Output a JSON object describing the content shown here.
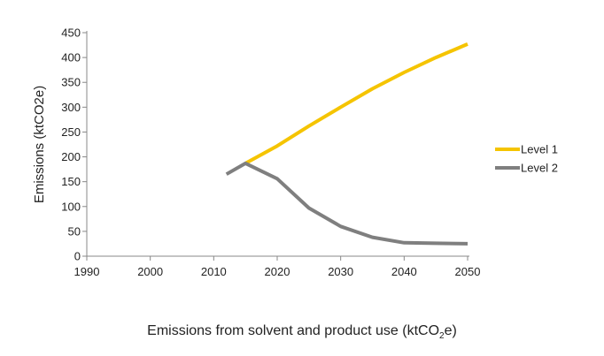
{
  "chart_data": {
    "type": "line",
    "title": "",
    "xlabel": "",
    "ylabel": "Emissions (ktCO2e)",
    "xlim": [
      1990,
      2050
    ],
    "ylim": [
      0,
      450
    ],
    "xticks": [
      1990,
      2000,
      2010,
      2020,
      2030,
      2040,
      2050
    ],
    "yticks": [
      0,
      50,
      100,
      150,
      200,
      250,
      300,
      350,
      400,
      450
    ],
    "grid": false,
    "legend_position": "right",
    "series": [
      {
        "name": "Level 1",
        "color": "#f5c400",
        "points": [
          [
            2015,
            187
          ],
          [
            2020,
            222
          ],
          [
            2025,
            262
          ],
          [
            2030,
            300
          ],
          [
            2035,
            337
          ],
          [
            2040,
            370
          ],
          [
            2045,
            400
          ],
          [
            2050,
            427
          ]
        ]
      },
      {
        "name": "Level 2",
        "color": "#7f7f7f",
        "points": [
          [
            2012,
            165
          ],
          [
            2015,
            187
          ],
          [
            2020,
            156
          ],
          [
            2025,
            97
          ],
          [
            2030,
            60
          ],
          [
            2035,
            38
          ],
          [
            2040,
            27
          ],
          [
            2045,
            26
          ],
          [
            2050,
            25
          ]
        ]
      }
    ]
  },
  "caption": {
    "prefix": "Emissions from solvent and product use (ktCO",
    "subscript": "2",
    "suffix": "e)"
  }
}
